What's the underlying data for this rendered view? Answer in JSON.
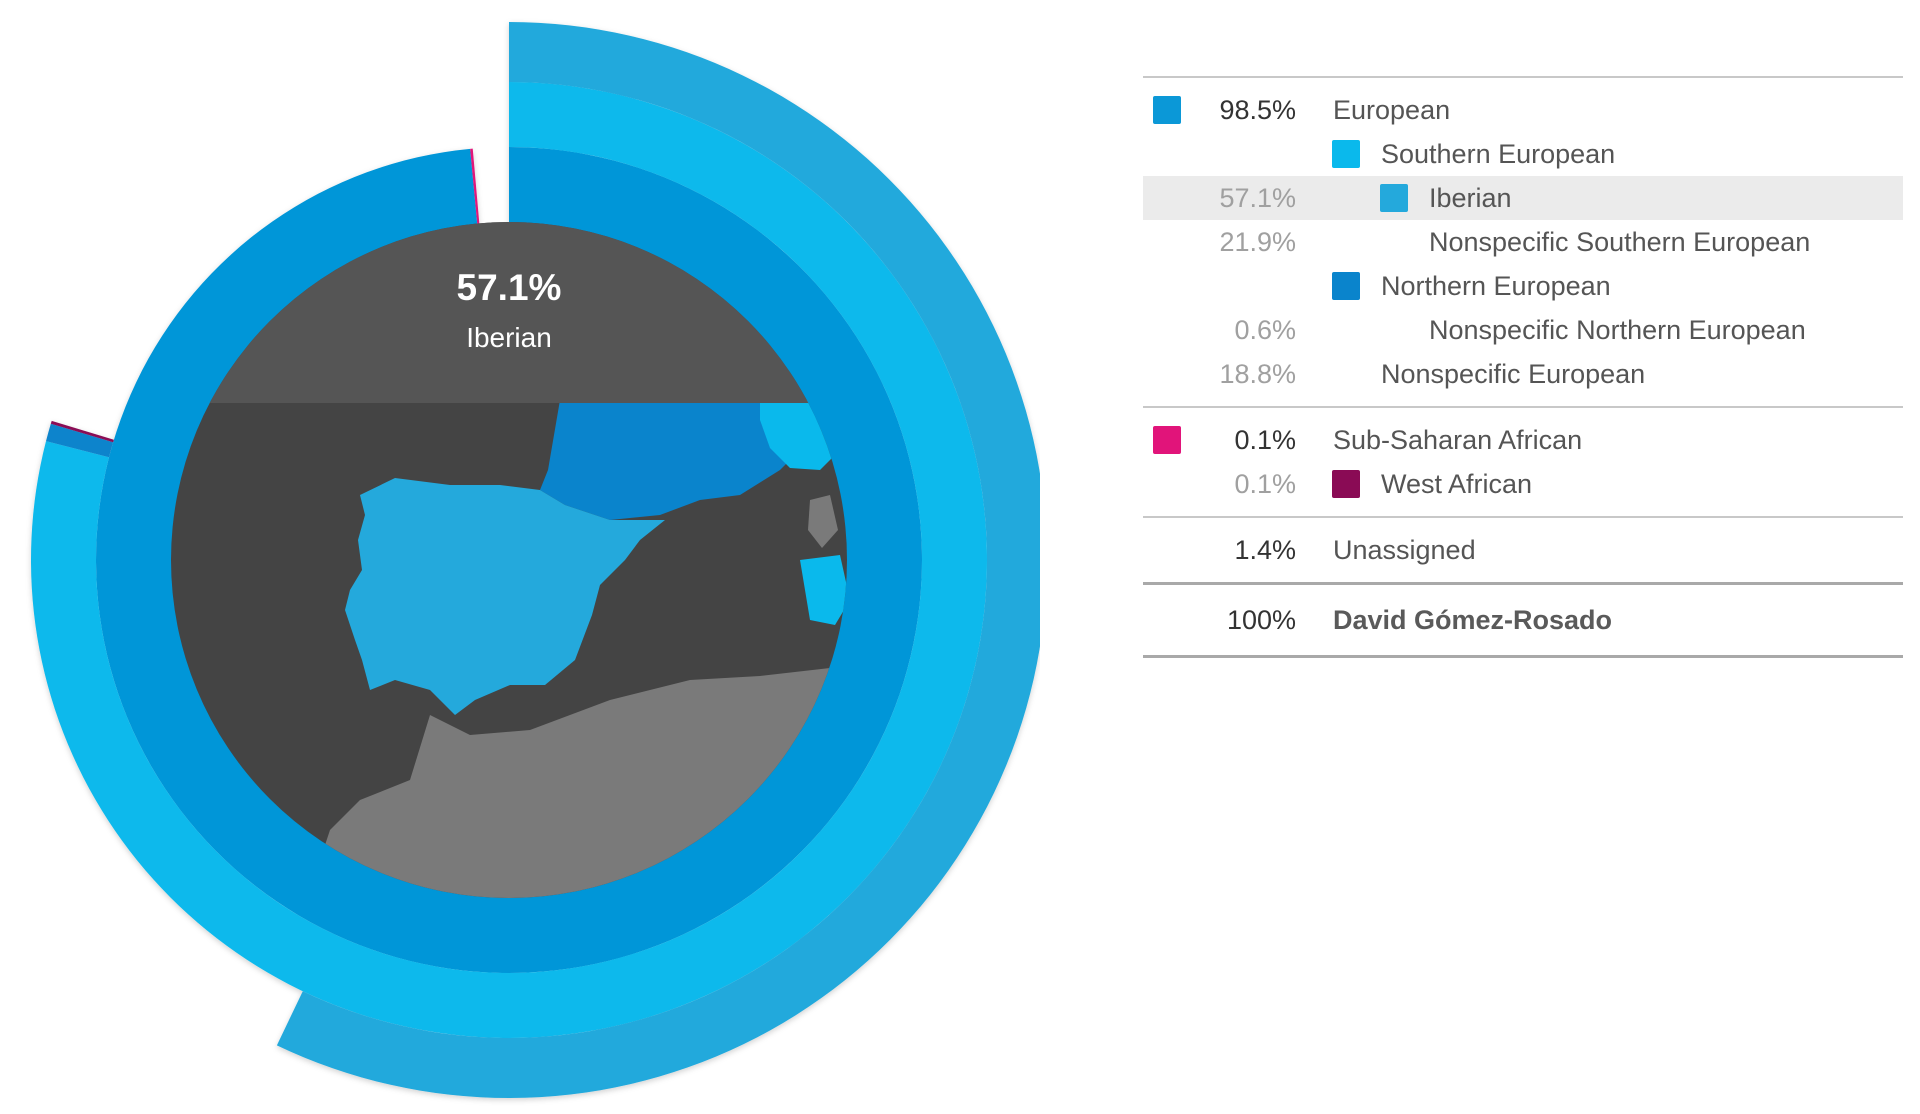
{
  "chart_data": {
    "type": "pie",
    "title": "",
    "center": {
      "value": "57.1%",
      "label": "Iberian"
    },
    "rings": [
      {
        "name": "European",
        "level": 0,
        "value": 98.5,
        "color": "#0096d8"
      },
      {
        "name": "Sub-Saharan African",
        "level": 0,
        "value": 0.1,
        "color": "#e1147a"
      },
      {
        "name": "Southern European",
        "level": 1,
        "value": 79.0,
        "color": "#0ab9ec"
      },
      {
        "name": "Northern European",
        "level": 1,
        "value": 0.6,
        "color": "#0a84cc"
      },
      {
        "name": "West African",
        "level": 1,
        "value": 0.1,
        "color": "#8a0b55"
      },
      {
        "name": "Iberian",
        "level": 2,
        "value": 57.1,
        "color": "#24a9dc"
      }
    ],
    "map_colors": {
      "land": "#444444",
      "africa": "#7a7a7a",
      "header": "#555555",
      "iberia": "#24a9dc",
      "france": "#0a84cc",
      "italy": "#0ab9ec"
    }
  },
  "legend": {
    "groups": [
      {
        "rows": [
          {
            "pct": "98.5%",
            "label": "European",
            "level": 0,
            "swatch": "#0b98d7",
            "pct_style": "strong",
            "swatch_pos": 0
          },
          {
            "pct": "",
            "label": "Southern European",
            "level": 1,
            "swatch": "#0ab9ec",
            "pct_style": "muted",
            "swatch_pos": 1
          },
          {
            "pct": "57.1%",
            "label": "Iberian",
            "level": 2,
            "swatch": "#24a9dc",
            "pct_style": "muted",
            "swatch_pos": 2,
            "highlight": true
          },
          {
            "pct": "21.9%",
            "label": "Nonspecific Southern European",
            "level": 2,
            "swatch": "",
            "pct_style": "muted"
          },
          {
            "pct": "",
            "label": "Northern European",
            "level": 1,
            "swatch": "#0a84cc",
            "pct_style": "muted",
            "swatch_pos": 1
          },
          {
            "pct": "0.6%",
            "label": "Nonspecific Northern European",
            "level": 2,
            "swatch": "",
            "pct_style": "muted"
          },
          {
            "pct": "18.8%",
            "label": "Nonspecific European",
            "level": 1,
            "swatch": "",
            "pct_style": "muted"
          }
        ]
      },
      {
        "rows": [
          {
            "pct": "0.1%",
            "label": "Sub-Saharan African",
            "level": 0,
            "swatch": "#e1147a",
            "pct_style": "strong",
            "swatch_pos": 0
          },
          {
            "pct": "0.1%",
            "label": "West African",
            "level": 1,
            "swatch": "#8a0b55",
            "pct_style": "muted",
            "swatch_pos": 1
          }
        ]
      },
      {
        "rows": [
          {
            "pct": "1.4%",
            "label": "Unassigned",
            "level": 0,
            "swatch": "",
            "pct_style": "strong"
          }
        ]
      }
    ],
    "total": {
      "pct": "100%",
      "label": "David Gómez-Rosado"
    }
  }
}
